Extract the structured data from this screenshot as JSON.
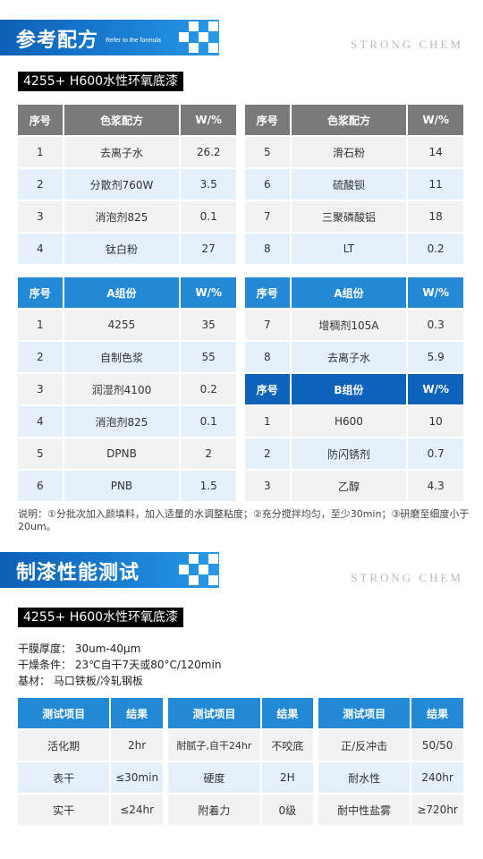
{
  "section1": {
    "title": "参考配方",
    "subtitle": "Refer to the formula",
    "brand": "STRONG CHEM",
    "product_label": "4255+ H600水性环氧底漆"
  },
  "color_paste_left": {
    "headers": [
      "序号",
      "色浆配方",
      "W/%"
    ],
    "rows": [
      [
        "1",
        "去离子水",
        "26.2"
      ],
      [
        "2",
        "分散剂760W",
        "3.5"
      ],
      [
        "3",
        "消泡剂825",
        "0.1"
      ],
      [
        "4",
        "钛白粉",
        "27"
      ]
    ]
  },
  "color_paste_right": {
    "headers": [
      "序号",
      "色浆配方",
      "W/%"
    ],
    "rows": [
      [
        "5",
        "滑石粉",
        "14"
      ],
      [
        "6",
        "硫酸钡",
        "11"
      ],
      [
        "7",
        "三聚磷酸铝",
        "18"
      ],
      [
        "8",
        "LT",
        "0.2"
      ]
    ]
  },
  "a_left": {
    "headers": [
      "序号",
      "A组份",
      "W/%"
    ],
    "rows": [
      [
        "1",
        "4255",
        "35"
      ],
      [
        "2",
        "自制色浆",
        "55"
      ],
      [
        "3",
        "润湿剂4100",
        "0.2"
      ],
      [
        "4",
        "消泡剂825",
        "0.1"
      ],
      [
        "5",
        "DPNB",
        "2"
      ],
      [
        "6",
        "PNB",
        "1.5"
      ]
    ]
  },
  "a_right": {
    "headers": [
      "序号",
      "A组份",
      "W/%"
    ],
    "rows": [
      [
        "7",
        "增稠剂105A",
        "0.3"
      ],
      [
        "8",
        "去离子水",
        "5.9"
      ]
    ]
  },
  "b_right": {
    "headers": [
      "序号",
      "B组份",
      "W/%"
    ],
    "rows": [
      [
        "1",
        "H600",
        "10"
      ],
      [
        "2",
        "防闪锈剂",
        "0.7"
      ],
      [
        "3",
        "乙醇",
        "4.3"
      ]
    ]
  },
  "note": "说明：①分批次加入颜填料，加入适量的水调整粘度；②充分搅拌均匀，至少30min；③研磨至细度小于20um。",
  "section2": {
    "title": "制漆性能测试",
    "brand": "STRONG CHEM",
    "product_label": "4255+ H600水性环氧底漆"
  },
  "specs": {
    "film": "干膜厚度：  30um-40μm",
    "dry": "干燥条件：  23℃自干7天或80°C/120min",
    "substrate": "基材：  马口铁板/冷轧钢板"
  },
  "test1": {
    "headers": [
      "测试项目",
      "结果"
    ],
    "rows": [
      [
        "活化期",
        "2hr"
      ],
      [
        "表干",
        "≤30min"
      ],
      [
        "实干",
        "≤24hr"
      ]
    ]
  },
  "test2": {
    "headers": [
      "测试项目",
      "结果"
    ],
    "rows": [
      [
        "耐腻子,自干24hr",
        "不咬底"
      ],
      [
        "硬度",
        "2H"
      ],
      [
        "附着力",
        "0级"
      ]
    ]
  },
  "test3": {
    "headers": [
      "测试项目",
      "结果"
    ],
    "rows": [
      [
        "正/反冲击",
        "50/50"
      ],
      [
        "耐水性",
        "240hr"
      ],
      [
        "耐中性盐雾",
        "≥720hr"
      ]
    ]
  },
  "colors": {
    "banner_blue": "#1d86d8",
    "header_gray": "#7a7a7a",
    "header_blue": "#2389d6",
    "header_dark_blue": "#0d62ba",
    "row_gray": "#f2f2f2",
    "row_light_blue": "#e4f1fb"
  }
}
